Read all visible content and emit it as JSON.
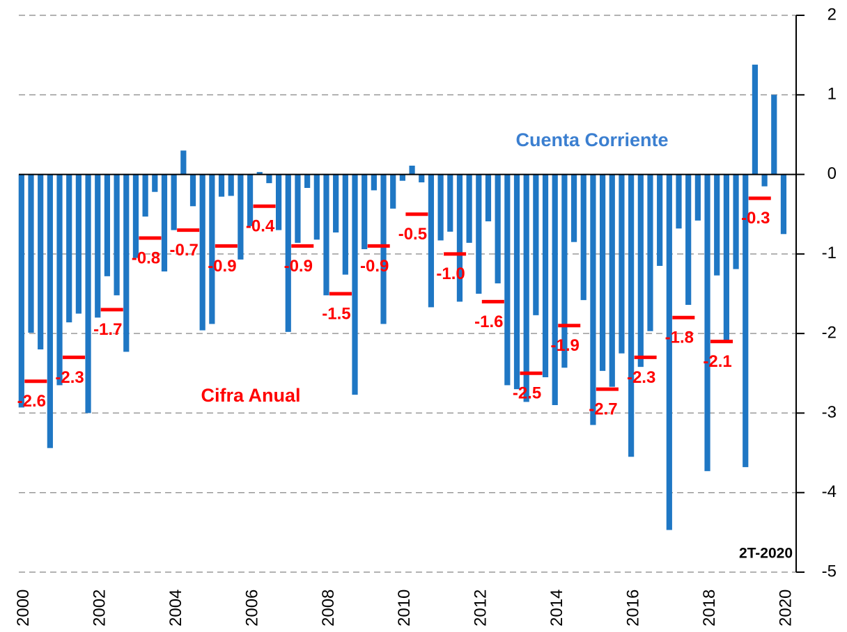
{
  "chart_data": {
    "type": "bar",
    "annotations": [
      "Cuenta Corriente",
      "Cifra Anual",
      "2T-2020"
    ],
    "xlim": [
      1999.93,
      2020.33
    ],
    "xticks": [
      2000,
      2002,
      2004,
      2006,
      2008,
      2010,
      2012,
      2014,
      2016,
      2018,
      2020
    ],
    "ylim": [
      -5,
      2
    ],
    "yticks": [
      -5,
      -4,
      -3,
      -2,
      -1,
      0,
      1,
      2
    ],
    "grid": true,
    "series": [
      {
        "name": "Cuenta Corriente",
        "color": "#1f77c4",
        "x": [
          2000,
          2000.25,
          2000.5,
          2000.75,
          2001,
          2001.25,
          2001.5,
          2001.75,
          2002,
          2002.25,
          2002.5,
          2002.75,
          2003,
          2003.25,
          2003.5,
          2003.75,
          2004,
          2004.25,
          2004.5,
          2004.75,
          2005,
          2005.25,
          2005.5,
          2005.75,
          2006,
          2006.25,
          2006.5,
          2006.75,
          2007,
          2007.25,
          2007.5,
          2007.75,
          2008,
          2008.25,
          2008.5,
          2008.75,
          2009,
          2009.25,
          2009.5,
          2009.75,
          2010,
          2010.25,
          2010.5,
          2010.75,
          2011,
          2011.25,
          2011.5,
          2011.75,
          2012,
          2012.25,
          2012.5,
          2012.75,
          2013,
          2013.25,
          2013.5,
          2013.75,
          2014,
          2014.25,
          2014.5,
          2014.75,
          2015,
          2015.25,
          2015.5,
          2015.75,
          2016,
          2016.25,
          2016.5,
          2016.75,
          2017,
          2017.25,
          2017.5,
          2017.75,
          2018,
          2018.25,
          2018.5,
          2018.75,
          2019,
          2019.25,
          2019.5,
          2019.75,
          2020
        ],
        "values": [
          -2.93,
          -1.99,
          -2.2,
          -3.44,
          -2.65,
          -1.86,
          -1.75,
          -3.0,
          -1.8,
          -1.28,
          -1.52,
          -2.23,
          -1.05,
          -0.53,
          -0.22,
          -1.22,
          -0.7,
          0.3,
          -0.4,
          -1.96,
          -1.88,
          -0.28,
          -0.27,
          -1.07,
          -0.65,
          0.03,
          -0.11,
          -0.7,
          -1.98,
          -0.86,
          -0.17,
          -0.82,
          -1.52,
          -0.73,
          -1.26,
          -2.77,
          -0.94,
          -0.2,
          -1.88,
          -0.43,
          -0.08,
          0.11,
          -0.1,
          -1.67,
          -0.83,
          -0.72,
          -1.6,
          -0.86,
          -1.5,
          -0.59,
          -1.37,
          -2.65,
          -2.7,
          -2.86,
          -1.77,
          -2.55,
          -2.9,
          -2.43,
          -0.85,
          -1.58,
          -3.15,
          -2.47,
          -2.67,
          -2.25,
          -3.55,
          -2.42,
          -1.97,
          -1.15,
          -4.47,
          -0.68,
          -1.64,
          -0.58,
          -3.73,
          -1.27,
          -2.12,
          -1.19,
          -3.68,
          1.38,
          -0.15,
          1.0,
          -0.75
        ]
      },
      {
        "name": "Cifra Anual",
        "color": "#ff0000",
        "x": [
          2000,
          2001,
          2002,
          2003,
          2004,
          2005,
          2006,
          2007,
          2008,
          2009,
          2010,
          2011,
          2012,
          2013,
          2014,
          2015,
          2016,
          2017,
          2018,
          2019
        ],
        "values": [
          -2.6,
          -2.3,
          -1.7,
          -0.8,
          -0.7,
          -0.9,
          -0.4,
          -0.9,
          -1.5,
          -0.9,
          -0.5,
          -1.0,
          -1.6,
          -2.5,
          -1.9,
          -2.7,
          -2.3,
          -1.8,
          -2.1,
          -0.3
        ],
        "value_labels": [
          "-2.6",
          "-2.3",
          "-1.7",
          "-0.8",
          "-0.7",
          "-0.9",
          "-0.4",
          "-0.9",
          "-1.5",
          "-0.9",
          "-0.5",
          "-1.0",
          "-1.6",
          "-2.5",
          "-1.9",
          "-2.7",
          "-2.3",
          "-1.8",
          "-2.1",
          "-0.3"
        ]
      }
    ]
  }
}
